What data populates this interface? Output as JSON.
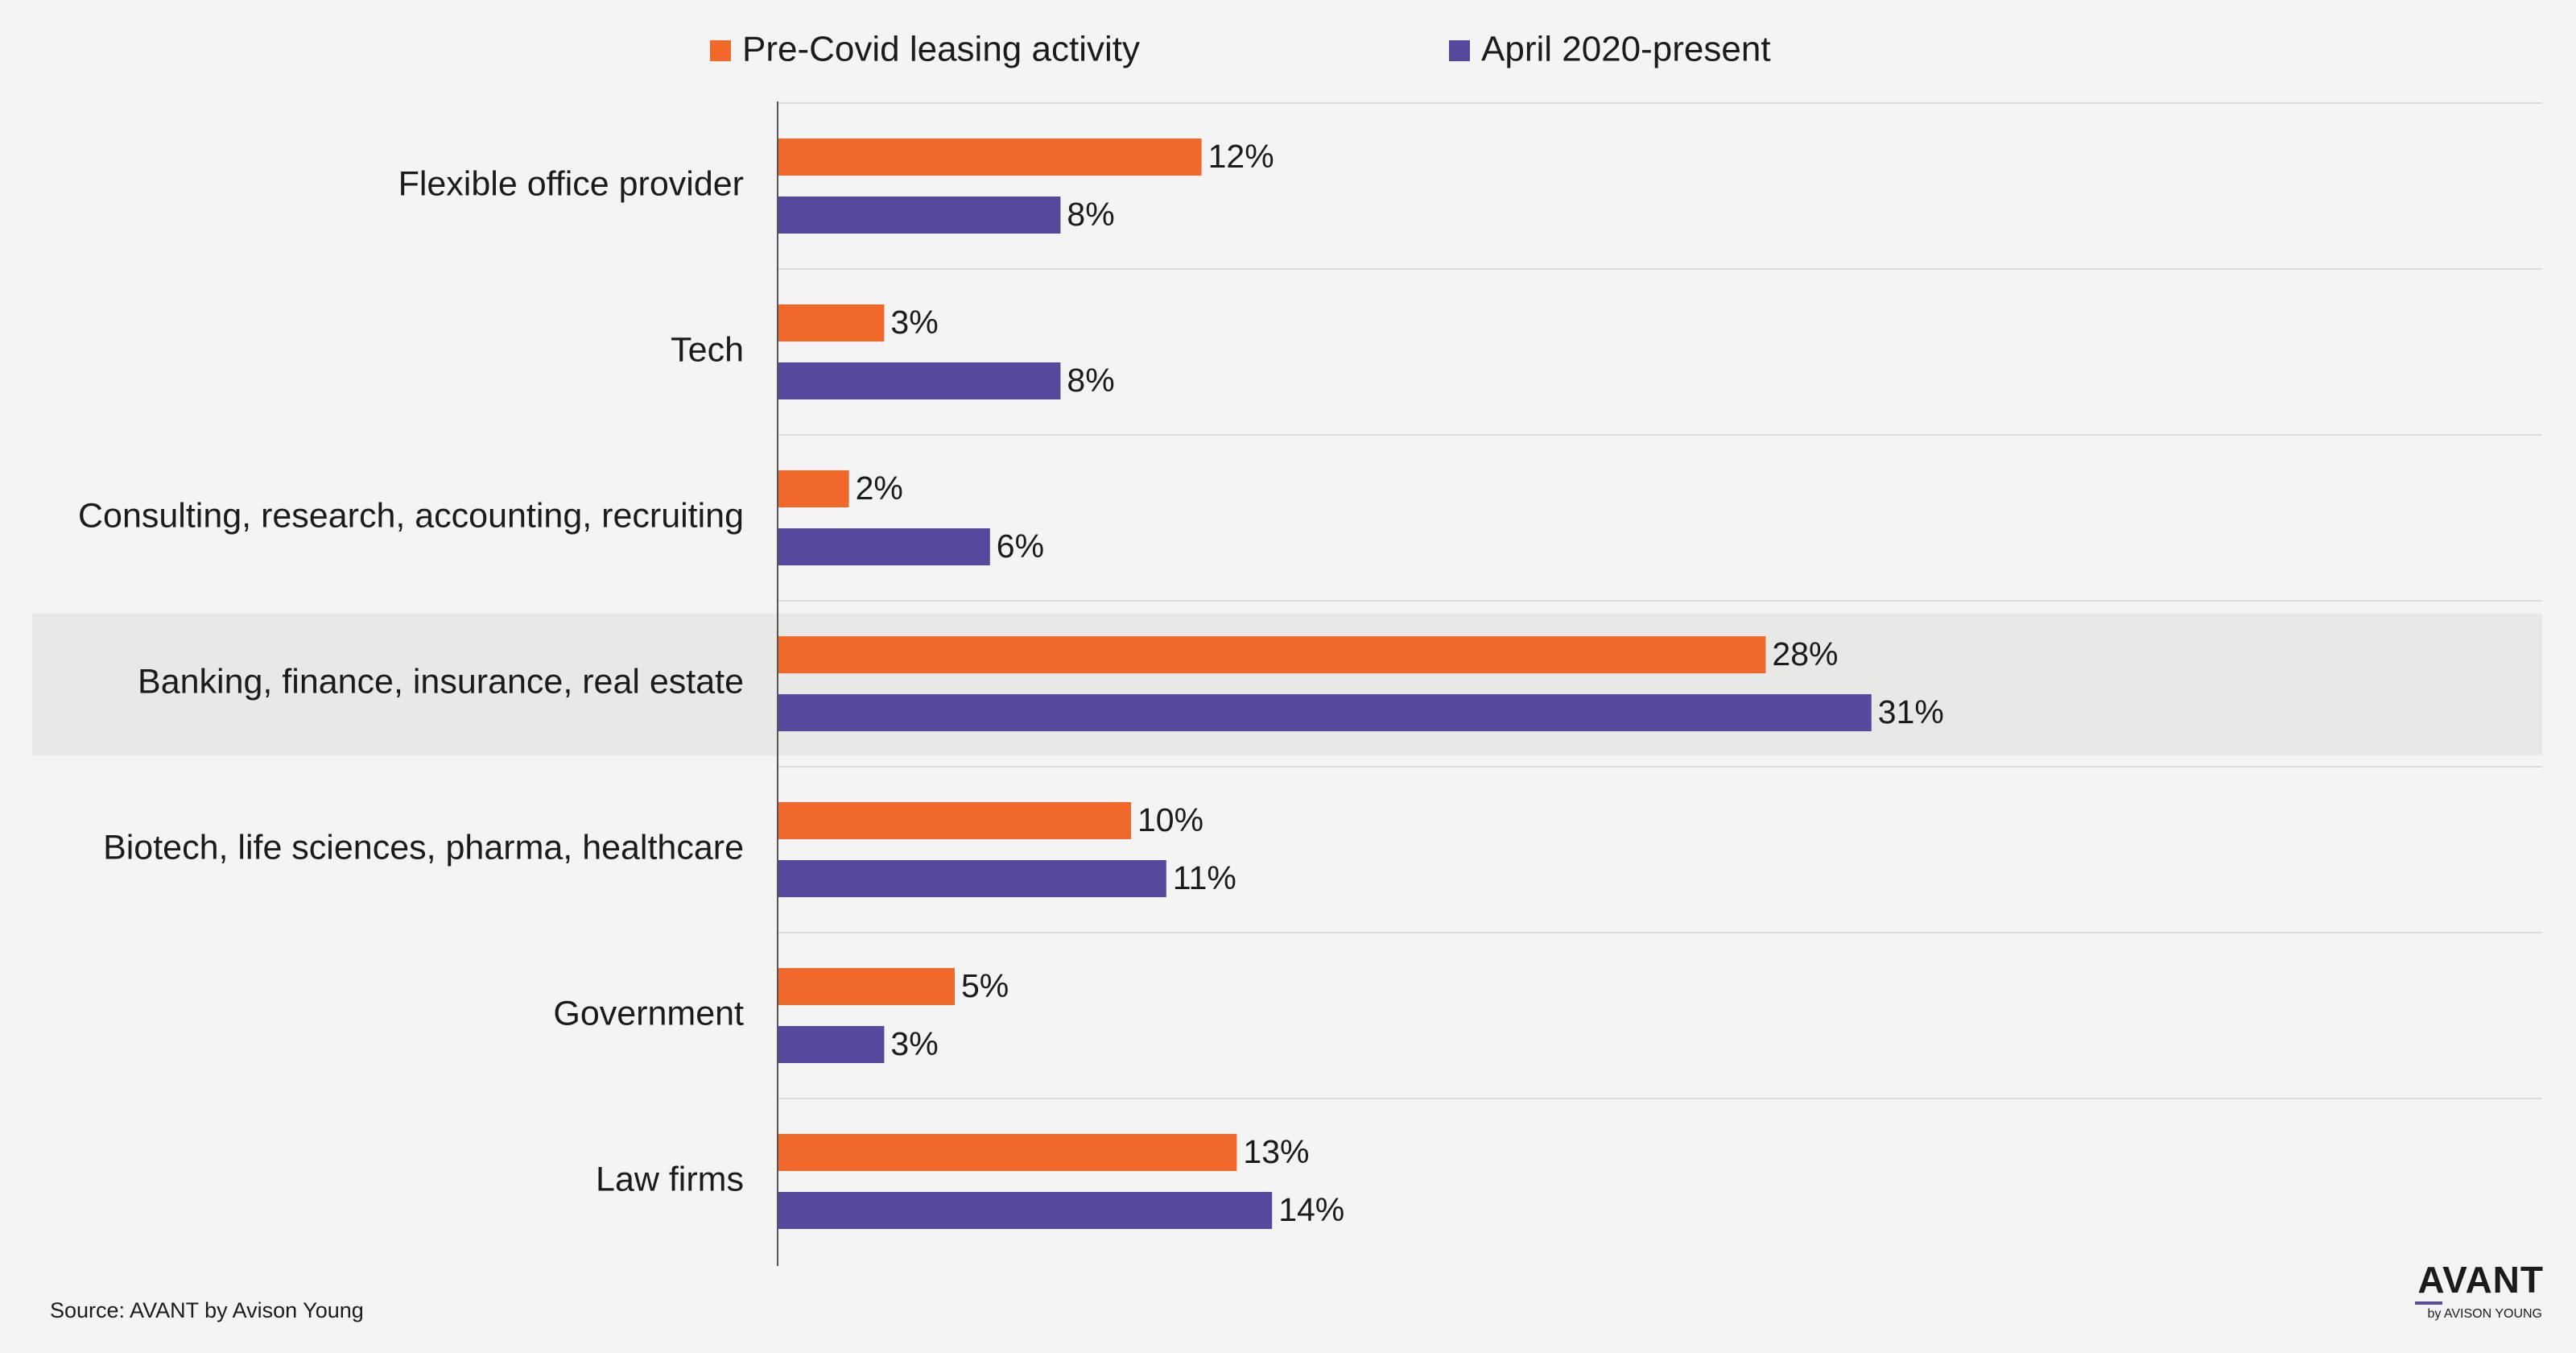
{
  "chart_data": {
    "type": "bar",
    "orientation": "horizontal",
    "categories": [
      "Flexible office provider",
      "Tech",
      "Consulting, research, accounting, recruiting",
      "Banking, finance, insurance, real estate",
      "Biotech, life sciences, pharma, healthcare",
      "Government ",
      "Law firms"
    ],
    "series": [
      {
        "name": "Pre-Covid leasing activity",
        "color": "#f0682a",
        "values": [
          12,
          3,
          2,
          28,
          10,
          5,
          13
        ]
      },
      {
        "name": "April 2020-present",
        "color": "#56489c",
        "values": [
          8,
          8,
          6,
          31,
          11,
          3,
          14
        ]
      }
    ],
    "value_suffix": "%",
    "highlighted_category": "Banking, finance, insurance, real estate",
    "xlim": [
      0,
      50
    ],
    "legend_position": "top",
    "grid": true
  },
  "colors": {
    "background": "#f4f4f4",
    "highlight_band": "#e8e8e6",
    "gridline": "#dcdcdc",
    "axis": "#555555",
    "text": "#1b1b1b"
  },
  "footer": {
    "source": "Source: AVANT by Avison Young",
    "logo_main": "AVANT",
    "logo_sub": "by AVISON YOUNG"
  }
}
